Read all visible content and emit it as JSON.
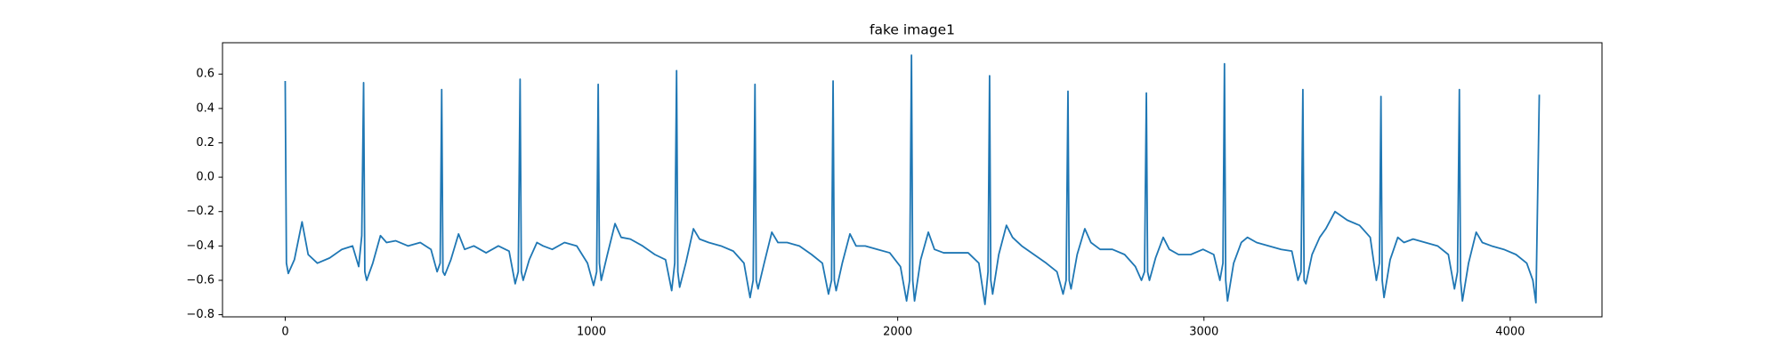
{
  "chart_data": {
    "type": "line",
    "title": "fake image1",
    "x": [
      0,
      4,
      10,
      30,
      55,
      75,
      105,
      145,
      185,
      220,
      240,
      250,
      256,
      260,
      266,
      286,
      311,
      331,
      361,
      401,
      441,
      476,
      496,
      506,
      511,
      515,
      521,
      541,
      566,
      586,
      616,
      656,
      696,
      731,
      751,
      761,
      767,
      771,
      777,
      797,
      822,
      842,
      872,
      912,
      952,
      987,
      1007,
      1017,
      1022,
      1026,
      1032,
      1052,
      1077,
      1097,
      1127,
      1167,
      1207,
      1242,
      1262,
      1272,
      1278,
      1282,
      1288,
      1308,
      1333,
      1353,
      1383,
      1423,
      1463,
      1498,
      1518,
      1528,
      1534,
      1538,
      1544,
      1564,
      1589,
      1609,
      1639,
      1679,
      1719,
      1754,
      1774,
      1784,
      1789,
      1793,
      1799,
      1819,
      1844,
      1864,
      1894,
      1934,
      1974,
      2009,
      2029,
      2039,
      2045,
      2049,
      2055,
      2075,
      2100,
      2120,
      2150,
      2190,
      2230,
      2265,
      2285,
      2295,
      2300,
      2304,
      2310,
      2330,
      2355,
      2375,
      2405,
      2445,
      2485,
      2520,
      2540,
      2550,
      2556,
      2560,
      2566,
      2586,
      2611,
      2631,
      2661,
      2701,
      2741,
      2776,
      2796,
      2806,
      2812,
      2816,
      2822,
      2842,
      2867,
      2887,
      2917,
      2957,
      2997,
      3032,
      3052,
      3062,
      3067,
      3071,
      3077,
      3097,
      3122,
      3142,
      3172,
      3212,
      3252,
      3287,
      3307,
      3317,
      3323,
      3327,
      3333,
      3353,
      3378,
      3398,
      3428,
      3468,
      3508,
      3543,
      3563,
      3573,
      3578,
      3582,
      3588,
      3608,
      3633,
      3653,
      3683,
      3723,
      3763,
      3798,
      3818,
      3828,
      3834,
      3838,
      3844,
      3864,
      3889,
      3909,
      3939,
      3979,
      4019,
      4054,
      4074,
      4084,
      4095
    ],
    "series": [
      {
        "color": "#1f77b4",
        "values": [
          0.56,
          -0.5,
          -0.56,
          -0.48,
          -0.26,
          -0.45,
          -0.5,
          -0.47,
          -0.42,
          -0.4,
          -0.52,
          -0.34,
          0.55,
          -0.55,
          -0.6,
          -0.5,
          -0.34,
          -0.38,
          -0.37,
          -0.4,
          -0.38,
          -0.42,
          -0.55,
          -0.5,
          0.51,
          -0.55,
          -0.57,
          -0.48,
          -0.33,
          -0.42,
          -0.4,
          -0.44,
          -0.4,
          -0.43,
          -0.62,
          -0.55,
          0.57,
          -0.55,
          -0.6,
          -0.48,
          -0.38,
          -0.4,
          -0.42,
          -0.38,
          -0.4,
          -0.5,
          -0.63,
          -0.55,
          0.54,
          -0.5,
          -0.6,
          -0.45,
          -0.27,
          -0.35,
          -0.36,
          -0.4,
          -0.45,
          -0.48,
          -0.66,
          -0.5,
          0.62,
          -0.55,
          -0.64,
          -0.5,
          -0.3,
          -0.36,
          -0.38,
          -0.4,
          -0.43,
          -0.5,
          -0.7,
          -0.6,
          0.54,
          -0.6,
          -0.65,
          -0.5,
          -0.32,
          -0.38,
          -0.38,
          -0.4,
          -0.45,
          -0.5,
          -0.68,
          -0.6,
          0.56,
          -0.6,
          -0.66,
          -0.5,
          -0.33,
          -0.4,
          -0.4,
          -0.42,
          -0.44,
          -0.52,
          -0.72,
          -0.6,
          0.71,
          -0.6,
          -0.72,
          -0.48,
          -0.32,
          -0.42,
          -0.44,
          -0.44,
          -0.44,
          -0.5,
          -0.74,
          -0.55,
          0.59,
          -0.6,
          -0.68,
          -0.45,
          -0.28,
          -0.35,
          -0.4,
          -0.45,
          -0.5,
          -0.55,
          -0.68,
          -0.6,
          0.5,
          -0.6,
          -0.65,
          -0.45,
          -0.3,
          -0.38,
          -0.42,
          -0.42,
          -0.45,
          -0.52,
          -0.6,
          -0.55,
          0.49,
          -0.55,
          -0.6,
          -0.47,
          -0.35,
          -0.42,
          -0.45,
          -0.45,
          -0.42,
          -0.45,
          -0.6,
          -0.5,
          0.66,
          -0.6,
          -0.72,
          -0.5,
          -0.38,
          -0.35,
          -0.38,
          -0.4,
          -0.42,
          -0.43,
          -0.6,
          -0.55,
          0.51,
          -0.6,
          -0.62,
          -0.45,
          -0.35,
          -0.3,
          -0.2,
          -0.25,
          -0.28,
          -0.35,
          -0.6,
          -0.5,
          0.47,
          -0.6,
          -0.7,
          -0.48,
          -0.35,
          -0.38,
          -0.36,
          -0.38,
          -0.4,
          -0.45,
          -0.65,
          -0.55,
          0.51,
          -0.6,
          -0.72,
          -0.5,
          -0.32,
          -0.38,
          -0.4,
          -0.42,
          -0.45,
          -0.5,
          -0.6,
          -0.73,
          0.48
        ]
      }
    ],
    "xlim": [
      -204.75,
      4299.75
    ],
    "xticks": [
      0,
      1000,
      2000,
      3000,
      4000
    ],
    "ylim": [
      -0.8125,
      0.7825
    ],
    "yticks": [
      {
        "value": -0.8,
        "label": "−0.8"
      },
      {
        "value": -0.6,
        "label": "−0.6"
      },
      {
        "value": -0.4,
        "label": "−0.4"
      },
      {
        "value": -0.2,
        "label": "−0.2"
      },
      {
        "value": 0,
        "label": "0.0"
      },
      0.2,
      0.4,
      0.6
    ],
    "grid": false
  }
}
